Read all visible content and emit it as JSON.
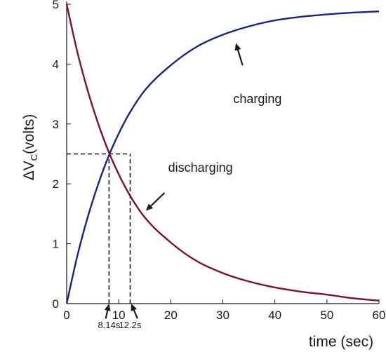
{
  "chart_data": {
    "type": "line",
    "xlabel": "time (sec)",
    "ylabel": {
      "prefix": "ΔV",
      "subscript": "C",
      "suffix": "(volts)"
    },
    "xlim": [
      0,
      60
    ],
    "ylim": [
      0,
      5
    ],
    "xticks": [
      0,
      10,
      20,
      30,
      40,
      50,
      60
    ],
    "yticks": [
      0,
      1,
      2,
      3,
      4,
      5
    ],
    "grid": false,
    "series": [
      {
        "name": "charging",
        "color": "#1a237e",
        "x": [
          0,
          2,
          4,
          6,
          8,
          10,
          12,
          15,
          20,
          25,
          30,
          35,
          40,
          45,
          50,
          55,
          60
        ],
        "y": [
          0,
          0.78,
          1.43,
          1.98,
          2.45,
          2.84,
          3.17,
          3.56,
          3.98,
          4.29,
          4.49,
          4.63,
          4.73,
          4.79,
          4.83,
          4.86,
          4.88
        ]
      },
      {
        "name": "discharging",
        "color": "#7b1030",
        "x": [
          0,
          2,
          4,
          6,
          8,
          10,
          12,
          15,
          20,
          25,
          30,
          35,
          40,
          45,
          50,
          55,
          60
        ],
        "y": [
          5,
          4.22,
          3.57,
          3.02,
          2.55,
          2.16,
          1.83,
          1.44,
          1.02,
          0.71,
          0.51,
          0.37,
          0.27,
          0.2,
          0.15,
          0.09,
          0.05
        ]
      }
    ],
    "annotations": [
      {
        "text": "charging",
        "label_at": [
          32,
          3.35
        ],
        "arrow_from": [
          33.8,
          3.98
        ],
        "arrow_to": [
          32.5,
          4.35
        ]
      },
      {
        "text": "discharging",
        "label_at": [
          19.5,
          2.2
        ],
        "arrow_from": [
          18.8,
          1.85
        ],
        "arrow_to": [
          15.2,
          1.55
        ]
      },
      {
        "text": "8.14s",
        "label_at": [
          8.14,
          -0.35
        ],
        "arrow_from": [
          7.5,
          -0.25
        ],
        "arrow_to": [
          8.14,
          0
        ]
      },
      {
        "text": "12.2s",
        "label_at": [
          12.2,
          -0.35
        ],
        "arrow_from": [
          13.6,
          -0.25
        ],
        "arrow_to": [
          12.4,
          0
        ]
      }
    ],
    "reference_lines": [
      {
        "x": [
          0,
          12.2
        ],
        "y": [
          2.5,
          2.5
        ]
      },
      {
        "x": [
          8.14,
          8.14
        ],
        "y": [
          0,
          2.5
        ]
      },
      {
        "x": [
          12.2,
          12.2
        ],
        "y": [
          0,
          2.5
        ]
      }
    ]
  }
}
